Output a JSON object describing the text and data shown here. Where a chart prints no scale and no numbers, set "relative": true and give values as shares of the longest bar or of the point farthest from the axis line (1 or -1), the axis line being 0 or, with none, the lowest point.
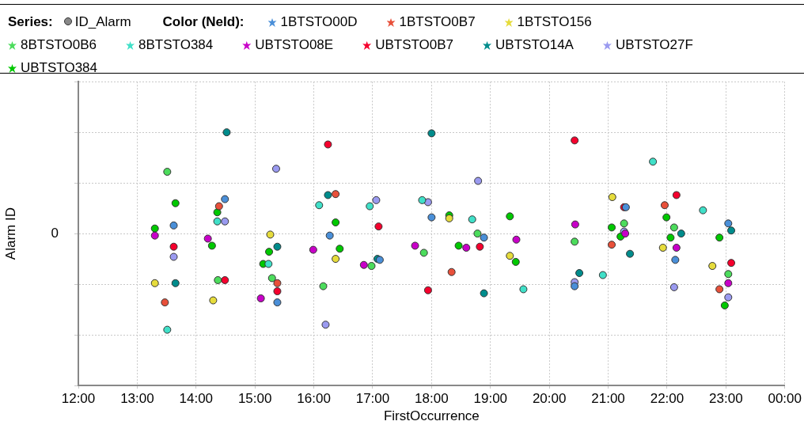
{
  "chart_data": {
    "type": "scatter",
    "xlabel": "FirstOccurrence",
    "ylabel": "Alarm ID",
    "legend_title": "Color (NeId):",
    "annotations": [
      "Series:",
      "ID_Alarm",
      "0"
    ],
    "legend": "top",
    "marker": "circle",
    "grid": true,
    "relative": true,
    "xlim": [
      12,
      24
    ],
    "xticks": [
      {
        "value": 12,
        "label": "12:00"
      },
      {
        "value": 13,
        "label": "13:00"
      },
      {
        "value": 14,
        "label": "14:00"
      },
      {
        "value": 15,
        "label": "15:00"
      },
      {
        "value": 16,
        "label": "16:00"
      },
      {
        "value": 17,
        "label": "17:00"
      },
      {
        "value": 18,
        "label": "18:00"
      },
      {
        "value": 19,
        "label": "19:00"
      },
      {
        "value": 20,
        "label": "20:00"
      },
      {
        "value": 21,
        "label": "21:00"
      },
      {
        "value": 22,
        "label": "22:00"
      },
      {
        "value": 23,
        "label": "23:00"
      },
      {
        "value": 24,
        "label": "00:00"
      }
    ],
    "series": [
      {
        "name": "1BTSTO00D",
        "color": "#4a8fd8",
        "x": [
          14.49,
          13.62,
          15.38,
          16.27,
          17.12,
          18.0,
          18.89,
          21.3,
          23.04,
          22.14,
          20.43
        ],
        "values": [
          0.34,
          0.08,
          -0.68,
          -0.02,
          -0.26,
          0.16,
          -0.04,
          0.26,
          0.1,
          -0.26,
          -0.52
        ]
      },
      {
        "name": "1BTSTO0B7",
        "color": "#e8503a",
        "x": [
          14.39,
          15.38,
          13.47,
          16.37,
          18.34,
          21.96,
          21.06,
          22.89
        ],
        "values": [
          0.27,
          -0.49,
          -0.68,
          0.39,
          -0.38,
          0.28,
          -0.11,
          -0.55
        ]
      },
      {
        "name": "1BTSTO156",
        "color": "#e6dc3c",
        "x": [
          15.26,
          13.3,
          14.29,
          16.37,
          18.3,
          19.33,
          21.07,
          21.93,
          22.77
        ],
        "values": [
          -0.01,
          -0.49,
          -0.66,
          -0.25,
          0.15,
          -0.22,
          0.36,
          -0.14,
          -0.32
        ]
      },
      {
        "name": "8BTSTO0B6",
        "color": "#4cdc5c",
        "x": [
          13.51,
          14.37,
          15.29,
          16.16,
          16.98,
          17.87,
          18.78,
          20.43,
          21.27,
          22.12,
          23.04
        ],
        "values": [
          0.61,
          -0.46,
          -0.44,
          -0.52,
          -0.32,
          -0.19,
          0.0,
          -0.08,
          0.1,
          0.06,
          -0.4
        ]
      },
      {
        "name": "8BTSTO384",
        "color": "#40e0c8",
        "x": [
          14.36,
          15.23,
          13.51,
          16.09,
          16.95,
          17.84,
          18.69,
          19.56,
          21.76,
          22.61,
          20.91
        ],
        "values": [
          0.12,
          -0.3,
          -0.95,
          0.28,
          0.27,
          0.33,
          0.14,
          -0.55,
          0.71,
          0.23,
          -0.41
        ]
      },
      {
        "name": "UBTSTO08E",
        "color": "#c800c8",
        "x": [
          13.3,
          14.2,
          15.1,
          15.99,
          16.85,
          17.72,
          18.59,
          19.44,
          20.44,
          21.29,
          22.16,
          23.04
        ],
        "values": [
          -0.02,
          -0.05,
          -0.64,
          -0.16,
          -0.31,
          -0.12,
          -0.14,
          -0.06,
          0.09,
          0.0,
          -0.14,
          -0.49
        ]
      },
      {
        "name": "UBTSTO0B7",
        "color": "#f5002d",
        "x": [
          13.62,
          14.49,
          15.38,
          16.24,
          17.1,
          17.94,
          18.82,
          20.43,
          21.27,
          22.16,
          23.09
        ],
        "values": [
          -0.13,
          -0.46,
          -0.57,
          0.88,
          0.07,
          -0.56,
          -0.13,
          0.92,
          0.26,
          0.38,
          -0.29
        ]
      },
      {
        "name": "UBTSTO14A",
        "color": "#008c8c",
        "x": [
          14.52,
          13.65,
          15.38,
          16.24,
          17.08,
          18.0,
          18.89,
          20.51,
          21.37,
          22.24,
          23.09
        ],
        "values": [
          1.0,
          -0.49,
          -0.13,
          0.38,
          -0.25,
          0.99,
          -0.59,
          -0.39,
          -0.2,
          0.0,
          0.03
        ]
      },
      {
        "name": "UBTSTO27F",
        "color": "#9a9af0",
        "x": [
          15.36,
          14.49,
          13.62,
          17.06,
          17.94,
          18.79,
          16.2,
          21.27,
          20.43,
          22.12,
          23.04
        ],
        "values": [
          0.64,
          0.12,
          -0.23,
          0.33,
          0.31,
          0.52,
          -0.9,
          0.02,
          -0.48,
          -0.53,
          -0.63
        ]
      },
      {
        "name": "UBTSTO384",
        "color": "#00c800",
        "x": [
          13.65,
          14.36,
          13.3,
          14.27,
          15.24,
          15.14,
          16.37,
          16.44,
          18.3,
          18.46,
          19.33,
          19.43,
          21.06,
          21.21,
          21.99,
          22.06,
          22.89,
          22.98
        ],
        "values": [
          0.3,
          0.21,
          0.05,
          -0.12,
          -0.18,
          -0.3,
          0.11,
          -0.15,
          0.18,
          -0.12,
          0.17,
          -0.28,
          0.06,
          -0.03,
          0.16,
          -0.04,
          -0.04,
          -0.71
        ]
      }
    ]
  }
}
